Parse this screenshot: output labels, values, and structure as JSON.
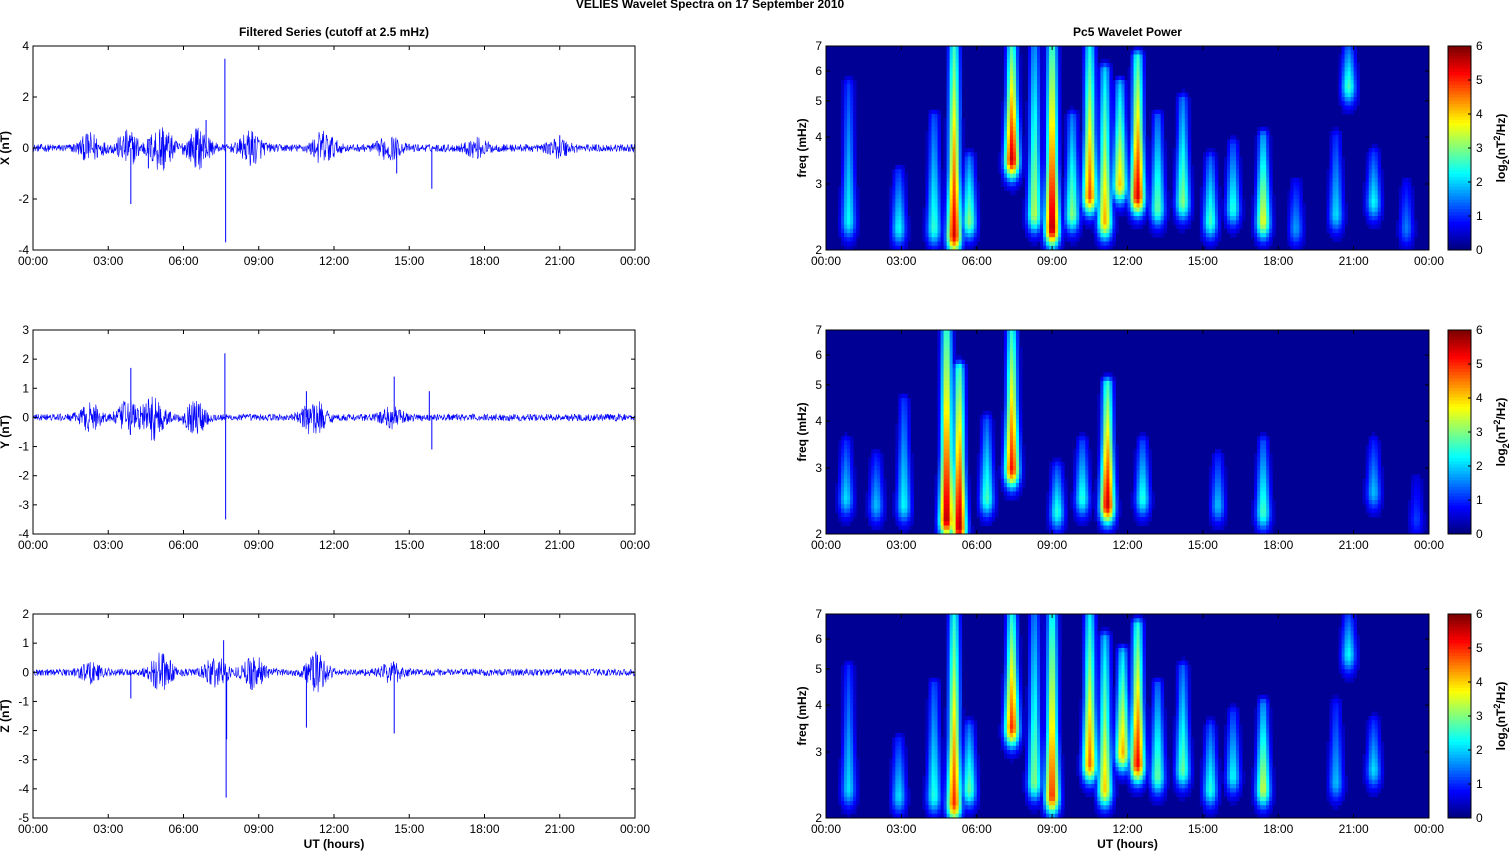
{
  "figure_title": "VELIES Wavelet Spectra on 17 September 2010",
  "chart_data": [
    {
      "type": "line",
      "title": "Filtered Series (cutoff at 2.5 mHz)",
      "xlabel": "",
      "ylabel": "X (nT)",
      "xlim": [
        "00:00",
        "24:00"
      ],
      "ylim": [
        -4,
        4
      ],
      "xticks": [
        "00:00",
        "03:00",
        "06:00",
        "09:00",
        "12:00",
        "15:00",
        "18:00",
        "21:00",
        "00:00"
      ],
      "yticks": [
        "-4",
        "-2",
        "0",
        "2",
        "4"
      ],
      "yticks_values": [
        -4,
        -2,
        0,
        2,
        4
      ],
      "color": "#0000ff",
      "baseline_noise_amplitude": 0.15,
      "bursts": [
        {
          "t": 2.3,
          "amp": 0.5
        },
        {
          "t": 3.8,
          "amp": 0.6
        },
        {
          "t": 5.1,
          "amp": 0.9
        },
        {
          "t": 6.6,
          "amp": 0.7
        },
        {
          "t": 8.7,
          "amp": 0.6
        },
        {
          "t": 11.6,
          "amp": 0.6
        },
        {
          "t": 14.2,
          "amp": 0.4
        },
        {
          "t": 17.7,
          "amp": 0.3
        },
        {
          "t": 21.0,
          "amp": 0.3
        }
      ],
      "spikes": [
        {
          "t": 3.9,
          "y": -2.2
        },
        {
          "t": 4.6,
          "y": -0.8
        },
        {
          "t": 6.9,
          "y": 1.1
        },
        {
          "t": 7.65,
          "y": 3.5
        },
        {
          "t": 7.68,
          "y": -3.7
        },
        {
          "t": 14.5,
          "y": -1.0
        },
        {
          "t": 15.9,
          "y": -1.6
        },
        {
          "t": 21.0,
          "y": 0.5
        }
      ]
    },
    {
      "type": "line",
      "title": "",
      "xlabel": "",
      "ylabel": "Y (nT)",
      "xlim": [
        "00:00",
        "24:00"
      ],
      "ylim": [
        -4,
        3
      ],
      "xticks": [
        "00:00",
        "03:00",
        "06:00",
        "09:00",
        "12:00",
        "15:00",
        "18:00",
        "21:00",
        "00:00"
      ],
      "yticks": [
        "-4",
        "-3",
        "-2",
        "-1",
        "0",
        "1",
        "2",
        "3"
      ],
      "yticks_values": [
        -4,
        -3,
        -2,
        -1,
        0,
        1,
        2,
        3
      ],
      "color": "#0000ff",
      "baseline_noise_amplitude": 0.12,
      "bursts": [
        {
          "t": 2.3,
          "amp": 0.4
        },
        {
          "t": 3.8,
          "amp": 0.5
        },
        {
          "t": 4.8,
          "amp": 0.7
        },
        {
          "t": 6.5,
          "amp": 0.5
        },
        {
          "t": 11.2,
          "amp": 0.6
        },
        {
          "t": 14.3,
          "amp": 0.3
        }
      ],
      "spikes": [
        {
          "t": 3.9,
          "y": 1.7
        },
        {
          "t": 7.65,
          "y": 2.2
        },
        {
          "t": 7.68,
          "y": -3.5
        },
        {
          "t": 10.9,
          "y": 0.9
        },
        {
          "t": 14.4,
          "y": 1.4
        },
        {
          "t": 15.9,
          "y": -1.1
        },
        {
          "t": 15.8,
          "y": 0.9
        }
      ]
    },
    {
      "type": "line",
      "title": "",
      "xlabel": "UT (hours)",
      "ylabel": "Z (nT)",
      "xlim": [
        "00:00",
        "24:00"
      ],
      "ylim": [
        -5,
        2
      ],
      "xticks": [
        "00:00",
        "03:00",
        "06:00",
        "09:00",
        "12:00",
        "15:00",
        "18:00",
        "21:00",
        "00:00"
      ],
      "yticks": [
        "-5",
        "-4",
        "-3",
        "-2",
        "-1",
        "0",
        "1",
        "2"
      ],
      "yticks_values": [
        -5,
        -4,
        -3,
        -2,
        -1,
        0,
        1,
        2
      ],
      "color": "#0000ff",
      "baseline_noise_amplitude": 0.12,
      "bursts": [
        {
          "t": 2.3,
          "amp": 0.3
        },
        {
          "t": 5.1,
          "amp": 0.6
        },
        {
          "t": 7.3,
          "amp": 0.5
        },
        {
          "t": 8.8,
          "amp": 0.5
        },
        {
          "t": 11.3,
          "amp": 0.6
        },
        {
          "t": 14.3,
          "amp": 0.3
        }
      ],
      "spikes": [
        {
          "t": 3.9,
          "y": -0.9
        },
        {
          "t": 7.6,
          "y": 1.1
        },
        {
          "t": 7.7,
          "y": -4.3
        },
        {
          "t": 7.72,
          "y": -2.3
        },
        {
          "t": 10.9,
          "y": -1.9
        },
        {
          "t": 14.4,
          "y": -2.1
        }
      ]
    },
    {
      "type": "heatmap",
      "title": "Pc5 Wavelet Power",
      "xlabel": "",
      "ylabel": "freq (mHz)",
      "xlim": [
        "00:00",
        "24:00"
      ],
      "ylim_mHz": [
        2,
        7
      ],
      "yscale": "log",
      "xticks": [
        "00:00",
        "03:00",
        "06:00",
        "09:00",
        "12:00",
        "15:00",
        "18:00",
        "21:00",
        "00:00"
      ],
      "yticks": [
        "2",
        "3",
        "4",
        "5",
        "6",
        "7"
      ],
      "yticks_values": [
        2,
        3,
        4,
        5,
        6,
        7
      ],
      "colorbar": {
        "label": "log2(nT²/Hz)",
        "label_main": "log",
        "label_sub": "2",
        "label_rest": "(nT",
        "label_sup": "2",
        "label_end": "/Hz)",
        "range": [
          0,
          6
        ],
        "ticks": [
          "0",
          "1",
          "2",
          "3",
          "4",
          "5",
          "6"
        ]
      },
      "blobs": [
        {
          "t": 0.9,
          "f0": 2.4,
          "top": 5.5,
          "peak": 2.2
        },
        {
          "t": 2.9,
          "f0": 2.3,
          "top": 3.2,
          "peak": 2.2
        },
        {
          "t": 4.3,
          "f0": 2.3,
          "top": 4.5,
          "peak": 2.5
        },
        {
          "t": 5.1,
          "f0": 2.2,
          "top": 7.0,
          "peak": 5.5
        },
        {
          "t": 5.7,
          "f0": 2.4,
          "top": 3.5,
          "peak": 3.0
        },
        {
          "t": 7.4,
          "f0": 3.5,
          "top": 7.0,
          "peak": 5.6
        },
        {
          "t": 8.3,
          "f0": 2.5,
          "top": 7.0,
          "peak": 3.3
        },
        {
          "t": 9.0,
          "f0": 2.3,
          "top": 7.0,
          "peak": 5.8
        },
        {
          "t": 9.8,
          "f0": 2.5,
          "top": 4.5,
          "peak": 3.0
        },
        {
          "t": 10.5,
          "f0": 2.8,
          "top": 7.0,
          "peak": 4.8
        },
        {
          "t": 11.1,
          "f0": 2.4,
          "top": 6.0,
          "peak": 4.2
        },
        {
          "t": 11.7,
          "f0": 3.0,
          "top": 5.5,
          "peak": 4.0
        },
        {
          "t": 12.4,
          "f0": 2.8,
          "top": 6.5,
          "peak": 5.5
        },
        {
          "t": 13.2,
          "f0": 2.6,
          "top": 4.5,
          "peak": 2.8
        },
        {
          "t": 14.2,
          "f0": 2.7,
          "top": 5.0,
          "peak": 3.0
        },
        {
          "t": 15.3,
          "f0": 2.4,
          "top": 3.5,
          "peak": 2.6
        },
        {
          "t": 16.2,
          "f0": 2.6,
          "top": 3.8,
          "peak": 2.4
        },
        {
          "t": 17.4,
          "f0": 2.4,
          "top": 4.0,
          "peak": 3.6
        },
        {
          "t": 18.7,
          "f0": 2.3,
          "top": 3.0,
          "peak": 1.6
        },
        {
          "t": 20.3,
          "f0": 2.5,
          "top": 4.0,
          "peak": 2.0
        },
        {
          "t": 20.8,
          "f0": 5.5,
          "top": 7.0,
          "peak": 2.6
        },
        {
          "t": 21.8,
          "f0": 2.7,
          "top": 3.6,
          "peak": 2.2
        },
        {
          "t": 23.1,
          "f0": 2.3,
          "top": 3.0,
          "peak": 1.4
        }
      ]
    },
    {
      "type": "heatmap",
      "title": "",
      "xlabel": "",
      "ylabel": "freq (mHz)",
      "xlim": [
        "00:00",
        "24:00"
      ],
      "ylim_mHz": [
        2,
        7
      ],
      "yscale": "log",
      "xticks": [
        "00:00",
        "03:00",
        "06:00",
        "09:00",
        "12:00",
        "15:00",
        "18:00",
        "21:00",
        "00:00"
      ],
      "yticks": [
        "2",
        "3",
        "4",
        "5",
        "6",
        "7"
      ],
      "yticks_values": [
        2,
        3,
        4,
        5,
        6,
        7
      ],
      "colorbar": {
        "label": "log2(nT²/Hz)",
        "label_main": "log",
        "label_sub": "2",
        "label_rest": "(nT",
        "label_sup": "2",
        "label_end": "/Hz)",
        "range": [
          0,
          6
        ],
        "ticks": [
          "0",
          "1",
          "2",
          "3",
          "4",
          "5",
          "6"
        ]
      },
      "blobs": [
        {
          "t": 0.8,
          "f0": 2.5,
          "top": 3.5,
          "peak": 2.0
        },
        {
          "t": 2.0,
          "f0": 2.4,
          "top": 3.2,
          "peak": 1.8
        },
        {
          "t": 3.1,
          "f0": 2.4,
          "top": 4.5,
          "peak": 2.2
        },
        {
          "t": 4.8,
          "f0": 2.2,
          "top": 7.0,
          "peak": 5.8
        },
        {
          "t": 5.3,
          "f0": 2.1,
          "top": 5.5,
          "peak": 5.8
        },
        {
          "t": 6.4,
          "f0": 2.5,
          "top": 4.0,
          "peak": 2.6
        },
        {
          "t": 7.4,
          "f0": 3.0,
          "top": 7.0,
          "peak": 5.2
        },
        {
          "t": 9.2,
          "f0": 2.3,
          "top": 3.0,
          "peak": 2.4
        },
        {
          "t": 10.2,
          "f0": 2.5,
          "top": 3.5,
          "peak": 2.4
        },
        {
          "t": 11.2,
          "f0": 2.4,
          "top": 5.0,
          "peak": 5.6
        },
        {
          "t": 12.6,
          "f0": 2.5,
          "top": 3.5,
          "peak": 2.4
        },
        {
          "t": 15.6,
          "f0": 2.4,
          "top": 3.2,
          "peak": 1.8
        },
        {
          "t": 17.4,
          "f0": 2.3,
          "top": 3.5,
          "peak": 2.6
        },
        {
          "t": 21.8,
          "f0": 2.6,
          "top": 3.5,
          "peak": 1.8
        },
        {
          "t": 23.5,
          "f0": 2.2,
          "top": 2.8,
          "peak": 1.0
        }
      ]
    },
    {
      "type": "heatmap",
      "title": "",
      "xlabel": "UT (hours)",
      "ylabel": "freq (mHz)",
      "xlim": [
        "00:00",
        "24:00"
      ],
      "ylim_mHz": [
        2,
        7
      ],
      "yscale": "log",
      "xticks": [
        "00:00",
        "03:00",
        "06:00",
        "09:00",
        "12:00",
        "15:00",
        "18:00",
        "21:00",
        "00:00"
      ],
      "yticks": [
        "2",
        "3",
        "4",
        "5",
        "6",
        "7"
      ],
      "yticks_values": [
        2,
        3,
        4,
        5,
        6,
        7
      ],
      "colorbar": {
        "label": "log2(nT²/Hz)",
        "label_main": "log",
        "label_sub": "2",
        "label_rest": "(nT",
        "label_sup": "2",
        "label_end": "/Hz)",
        "range": [
          0,
          6
        ],
        "ticks": [
          "0",
          "1",
          "2",
          "3",
          "4",
          "5",
          "6"
        ]
      },
      "blobs": [
        {
          "t": 0.9,
          "f0": 2.4,
          "top": 5.0,
          "peak": 2.0
        },
        {
          "t": 2.9,
          "f0": 2.3,
          "top": 3.2,
          "peak": 2.0
        },
        {
          "t": 4.3,
          "f0": 2.3,
          "top": 4.5,
          "peak": 2.4
        },
        {
          "t": 5.1,
          "f0": 2.2,
          "top": 7.0,
          "peak": 5.0
        },
        {
          "t": 5.7,
          "f0": 2.4,
          "top": 3.5,
          "peak": 2.8
        },
        {
          "t": 7.4,
          "f0": 3.5,
          "top": 7.0,
          "peak": 5.0
        },
        {
          "t": 8.3,
          "f0": 2.5,
          "top": 7.0,
          "peak": 3.0
        },
        {
          "t": 9.0,
          "f0": 2.3,
          "top": 7.0,
          "peak": 5.0
        },
        {
          "t": 10.5,
          "f0": 2.8,
          "top": 7.0,
          "peak": 4.6
        },
        {
          "t": 11.1,
          "f0": 2.4,
          "top": 6.0,
          "peak": 4.0
        },
        {
          "t": 11.8,
          "f0": 3.0,
          "top": 5.5,
          "peak": 4.2
        },
        {
          "t": 12.4,
          "f0": 2.8,
          "top": 6.5,
          "peak": 5.3
        },
        {
          "t": 13.2,
          "f0": 2.6,
          "top": 4.5,
          "peak": 2.8
        },
        {
          "t": 14.2,
          "f0": 2.7,
          "top": 5.0,
          "peak": 2.8
        },
        {
          "t": 15.3,
          "f0": 2.4,
          "top": 3.5,
          "peak": 2.4
        },
        {
          "t": 16.2,
          "f0": 2.6,
          "top": 3.8,
          "peak": 2.2
        },
        {
          "t": 17.4,
          "f0": 2.4,
          "top": 4.0,
          "peak": 3.4
        },
        {
          "t": 20.3,
          "f0": 2.5,
          "top": 4.0,
          "peak": 1.8
        },
        {
          "t": 20.8,
          "f0": 5.5,
          "top": 7.0,
          "peak": 2.2
        },
        {
          "t": 21.8,
          "f0": 2.7,
          "top": 3.6,
          "peak": 2.0
        }
      ]
    }
  ]
}
